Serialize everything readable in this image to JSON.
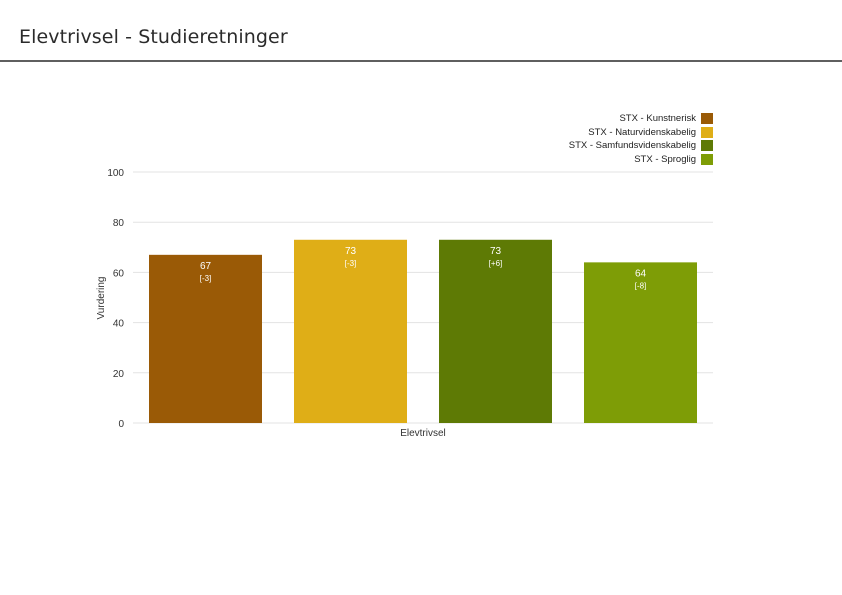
{
  "page": {
    "title": "Elevtrivsel - Studieretninger"
  },
  "colors": {
    "gridline": "#e3e3e3",
    "text": "#333333",
    "label_light": "#ffffff"
  },
  "chart_data": {
    "type": "bar",
    "title": "",
    "xlabel": "Elevtrivsel",
    "ylabel": "Vurdering",
    "ylim": [
      0,
      100
    ],
    "yticks": [
      0,
      20,
      40,
      60,
      80,
      100
    ],
    "grid": true,
    "legend_position": "top-right",
    "categories": [
      "Elevtrivsel"
    ],
    "series": [
      {
        "name": "STX - Kunstnerisk",
        "values": [
          67
        ],
        "change": "[-3]",
        "color": "#9a5a06"
      },
      {
        "name": "STX - Naturvidenskabelig",
        "values": [
          73
        ],
        "change": "[-3]",
        "color": "#dfae17"
      },
      {
        "name": "STX - Samfundsvidenskabelig",
        "values": [
          73
        ],
        "change": "[+6]",
        "color": "#5e7a05"
      },
      {
        "name": "STX - Sproglig",
        "values": [
          64
        ],
        "change": "[-8]",
        "color": "#7e9d06"
      }
    ]
  }
}
